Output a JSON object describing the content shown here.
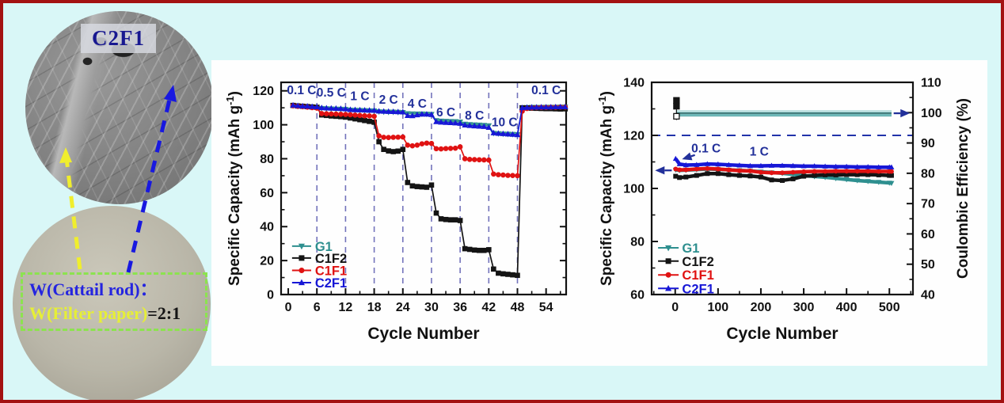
{
  "palette": {
    "canvas_bg": "#d9f7f7",
    "frame_border": "#a31212",
    "panel_bg": "#fefefe",
    "annotation_navy": "#22309a",
    "dashed_guide": "#7373bb",
    "series_teal": "#2e8f8f",
    "series_black": "#141414",
    "series_red": "#e01212",
    "series_blue": "#1717d6",
    "yellow_arrow": "#f0ee2d",
    "blue_arrow": "#1818e0",
    "ratio_box_border": "#8ce34f"
  },
  "left_panel": {
    "sem_label": "C2F1",
    "ratio_line1": "W(Cattail rod)：",
    "ratio_line2_yellow": "W(Filter paper)",
    "ratio_line2_black": "=2:1"
  },
  "legend_entries": [
    {
      "label": "G1",
      "color": "#2e8f8f",
      "marker": "triangle-down"
    },
    {
      "label": "C1F2",
      "color": "#141414",
      "marker": "square"
    },
    {
      "label": "C1F1",
      "color": "#e01212",
      "marker": "circle"
    },
    {
      "label": "C2F1",
      "color": "#1717d6",
      "marker": "triangle-up"
    }
  ],
  "chart_data": [
    {
      "id": "rate",
      "type": "line",
      "title": "",
      "xlabel": "Cycle Number",
      "ylabel": {
        "pre": "Specific Capacity (mAh g",
        "sup": "-1",
        "post": ")"
      },
      "xlim": [
        -1.5,
        58.2
      ],
      "ylim": [
        0,
        125
      ],
      "xticks": [
        0,
        6,
        12,
        18,
        24,
        30,
        36,
        42,
        48,
        54
      ],
      "xminor": 3,
      "yticks": [
        0,
        20,
        40,
        60,
        80,
        100,
        120
      ],
      "yminor": 10,
      "grid": false,
      "vlines": {
        "x": [
          6,
          12,
          18,
          24,
          30,
          36,
          42,
          48
        ],
        "color": "#7373bb"
      },
      "annotations": [
        {
          "text": "0.1 C",
          "x": 2.8,
          "y": 118
        },
        {
          "text": "0.5 C",
          "x": 9,
          "y": 116.5
        },
        {
          "text": "1 C",
          "x": 15,
          "y": 114.5
        },
        {
          "text": "2 C",
          "x": 21,
          "y": 112.5
        },
        {
          "text": "4 C",
          "x": 27,
          "y": 110
        },
        {
          "text": "6 C",
          "x": 33,
          "y": 105
        },
        {
          "text": "8 C",
          "x": 39,
          "y": 103
        },
        {
          "text": "10 C",
          "x": 45.3,
          "y": 99
        },
        {
          "text": "0.1 C",
          "x": 54,
          "y": 118
        }
      ],
      "cycles_note": "one point per cycle, cycle numbers 1-58",
      "rate_steps": [
        "0.1 C",
        "0.5 C",
        "1 C",
        "2 C",
        "4 C",
        "6 C",
        "8 C",
        "10 C",
        "0.1 C"
      ],
      "series": [
        {
          "name": "G1",
          "color": "#2e8f8f",
          "marker": "triangle-down",
          "y": [
            111.3,
            111.0,
            110.8,
            110.7,
            110.5,
            110.3,
            109.7,
            109.5,
            109.4,
            109.3,
            109.2,
            109.1,
            108.7,
            108.6,
            108.5,
            108.4,
            108.3,
            108.2,
            107.7,
            107.6,
            107.5,
            107.5,
            107.4,
            107.3,
            106.6,
            106.5,
            106.4,
            106.4,
            106.3,
            106.2,
            102.5,
            102.2,
            102.1,
            102.0,
            101.9,
            101.7,
            100.4,
            100.2,
            100.0,
            99.9,
            99.7,
            99.5,
            95.0,
            94.8,
            94.6,
            94.5,
            94.4,
            94.3,
            110.1,
            110.2,
            110.3,
            110.3,
            110.3,
            110.4,
            110.4,
            110.4,
            110.5,
            110.5
          ]
        },
        {
          "name": "C1F2",
          "color": "#141414",
          "marker": "square",
          "y": [
            111.4,
            111.1,
            110.9,
            110.7,
            110.5,
            110.3,
            105.8,
            105.5,
            105.2,
            105.0,
            104.8,
            104.5,
            104.0,
            103.5,
            103.0,
            102.5,
            102.0,
            101.5,
            90.0,
            85.5,
            84.6,
            84.2,
            84.5,
            85.5,
            66.0,
            64.0,
            63.6,
            63.4,
            63.2,
            64.5,
            48.0,
            44.6,
            44.2,
            44.0,
            44.0,
            43.6,
            27.0,
            26.6,
            26.2,
            26.0,
            26.0,
            26.4,
            15.0,
            12.6,
            12.2,
            11.9,
            11.6,
            11.3,
            110.0,
            109.9,
            109.8,
            109.7,
            109.6,
            109.5,
            109.5,
            109.4,
            109.3,
            109.4
          ]
        },
        {
          "name": "C1F1",
          "color": "#e01212",
          "marker": "circle",
          "y": [
            111.2,
            110.9,
            110.7,
            110.4,
            110.1,
            109.8,
            106.6,
            106.5,
            106.4,
            106.3,
            106.2,
            106.1,
            105.9,
            105.7,
            105.5,
            105.3,
            105.2,
            105.0,
            93.5,
            92.6,
            92.5,
            92.6,
            92.7,
            92.8,
            88.0,
            87.6,
            88.0,
            88.8,
            89.2,
            89.0,
            85.9,
            85.8,
            86.0,
            86.1,
            86.2,
            87.0,
            80.0,
            79.6,
            79.5,
            79.4,
            79.3,
            79.2,
            71.0,
            70.6,
            70.4,
            70.2,
            70.1,
            70.0,
            108.0,
            109.6,
            110.0,
            110.1,
            110.2,
            110.2,
            110.3,
            110.3,
            110.4,
            110.4
          ]
        },
        {
          "name": "C2F1",
          "color": "#1717d6",
          "marker": "triangle-up",
          "y": [
            111.5,
            111.2,
            111.0,
            110.9,
            110.7,
            110.5,
            110.0,
            109.8,
            109.7,
            109.6,
            109.5,
            109.3,
            108.9,
            108.8,
            108.7,
            108.6,
            108.5,
            108.4,
            108.0,
            107.9,
            107.8,
            107.7,
            107.6,
            107.5,
            105.4,
            105.3,
            105.8,
            106.2,
            106.2,
            106.0,
            101.8,
            101.5,
            101.3,
            101.2,
            101.0,
            100.8,
            99.8,
            99.5,
            99.3,
            99.1,
            98.9,
            98.4,
            95.2,
            94.9,
            94.7,
            94.5,
            94.3,
            94.1,
            110.0,
            110.2,
            110.3,
            110.3,
            110.4,
            110.4,
            110.4,
            110.5,
            110.5,
            110.5
          ]
        }
      ],
      "legend_layout": {
        "line_x": [
          0.8,
          4.8
        ],
        "label_x": 5.6,
        "ys": [
          28.5,
          21.5,
          14.2,
          7.0
        ]
      }
    },
    {
      "id": "cycling",
      "type": "line",
      "title": "",
      "xlabel": "Cycle Number",
      "ylabel": {
        "pre": "Specific Capacity (mAh g",
        "sup": "-1",
        "post": ")"
      },
      "y2label": "Coulombic Efficiency (%)",
      "xlim": [
        -55,
        555
      ],
      "ylim": [
        60,
        140
      ],
      "y2lim": [
        40,
        110
      ],
      "xticks": [
        0,
        100,
        200,
        300,
        400,
        500
      ],
      "xminor": 50,
      "yticks": [
        60,
        80,
        100,
        120,
        140
      ],
      "yminor": 10,
      "y2ticks": [
        40,
        50,
        60,
        70,
        80,
        90,
        100,
        110
      ],
      "y2minor": 5,
      "grid": false,
      "hlines": [
        {
          "y": 120,
          "color": "#2233aa",
          "dash": "11 8",
          "width": 2
        }
      ],
      "x": [
        1,
        10,
        25,
        50,
        75,
        100,
        125,
        150,
        175,
        200,
        225,
        250,
        275,
        300,
        325,
        350,
        375,
        400,
        425,
        450,
        475,
        500,
        505
      ],
      "series": [
        {
          "name": "G1",
          "color": "#2e8f8f",
          "marker": "triangle-down",
          "width": 4.5,
          "y": [
            107.0,
            106.8,
            106.9,
            107.1,
            107.3,
            107.2,
            107.0,
            106.8,
            106.6,
            106.3,
            106.0,
            105.7,
            105.3,
            104.8,
            104.5,
            104.2,
            103.8,
            103.4,
            103.0,
            102.7,
            102.4,
            102.1,
            102.0
          ]
        },
        {
          "name": "C1F2",
          "color": "#141414",
          "marker": "square",
          "width": 4.5,
          "y": [
            104.6,
            104.1,
            104.3,
            104.9,
            105.6,
            105.6,
            105.2,
            104.9,
            104.7,
            104.3,
            103.2,
            103.0,
            103.6,
            104.6,
            104.9,
            105.1,
            105.1,
            105.2,
            105.2,
            105.2,
            105.1,
            104.9,
            104.9
          ]
        },
        {
          "name": "C1F1",
          "color": "#e01212",
          "marker": "circle",
          "width": 4.5,
          "y": [
            107.3,
            107.0,
            107.0,
            107.3,
            107.5,
            107.3,
            107.0,
            106.7,
            106.6,
            106.1,
            105.9,
            105.9,
            106.1,
            106.3,
            106.4,
            106.4,
            106.5,
            106.5,
            106.5,
            106.5,
            106.4,
            106.4,
            106.4
          ]
        },
        {
          "name": "C2F1",
          "color": "#1717d6",
          "marker": "triangle-up",
          "width": 4.5,
          "y": [
            111.2,
            109.2,
            108.8,
            108.9,
            109.2,
            109.1,
            108.9,
            108.7,
            108.5,
            108.5,
            108.6,
            108.6,
            108.5,
            108.4,
            108.4,
            108.3,
            108.2,
            108.2,
            108.1,
            108.1,
            108.0,
            108.0,
            108.0
          ]
        }
      ],
      "coulombic_efficiency": {
        "value_percent": 99.8,
        "x1": 2,
        "x2": 505,
        "band_lines": [
          {
            "axis": "y2",
            "y": 99.8,
            "x1": 2,
            "x2": 505,
            "color": "#339494",
            "width": 8
          },
          {
            "axis": "y2",
            "y": 100.5,
            "x1": 2,
            "x2": 505,
            "color": "#cfeaea",
            "width": 2.4
          },
          {
            "axis": "y2",
            "y": 99.2,
            "x1": 2,
            "x2": 505,
            "color": "#8fcccc",
            "width": 1.6
          },
          {
            "axis": "y2",
            "y": 99.8,
            "x1": 2,
            "x2": 505,
            "color": "#606a6a",
            "width": 1
          }
        ]
      },
      "scatter": [
        {
          "x": 3,
          "y": 133.2,
          "marker": "square",
          "fill": "#141414",
          "stroke": "#141414"
        },
        {
          "x": 3,
          "y": 131.0,
          "marker": "square",
          "fill": "#141414",
          "stroke": "#141414"
        },
        {
          "x": 3,
          "y": 127.2,
          "marker": "square",
          "fill": "#ffffff",
          "stroke": "#141414"
        }
      ],
      "error_bars": [
        {
          "x": 3,
          "y1": 125.8,
          "y2": 133.6
        }
      ],
      "annotations": [
        {
          "text": "0.1 C",
          "x": 72,
          "y": 113.6
        },
        {
          "text": "1 C",
          "x": 196,
          "y": 112.4
        }
      ],
      "arrows": [
        {
          "x1": 46,
          "y1": 112.6,
          "x2": 16,
          "y2": 111.0
        },
        {
          "x1": -8,
          "y1": 106.8,
          "x2": -47,
          "y2": 106.8
        },
        {
          "x1": 510,
          "y1": 99.8,
          "x2": 548,
          "y2": 99.8,
          "axis": "y2"
        }
      ],
      "legend_layout": {
        "line_x": [
          -40,
          8
        ],
        "label_x": 16,
        "ys": [
          77.6,
          72.6,
          67.4,
          62.3
        ]
      }
    }
  ]
}
